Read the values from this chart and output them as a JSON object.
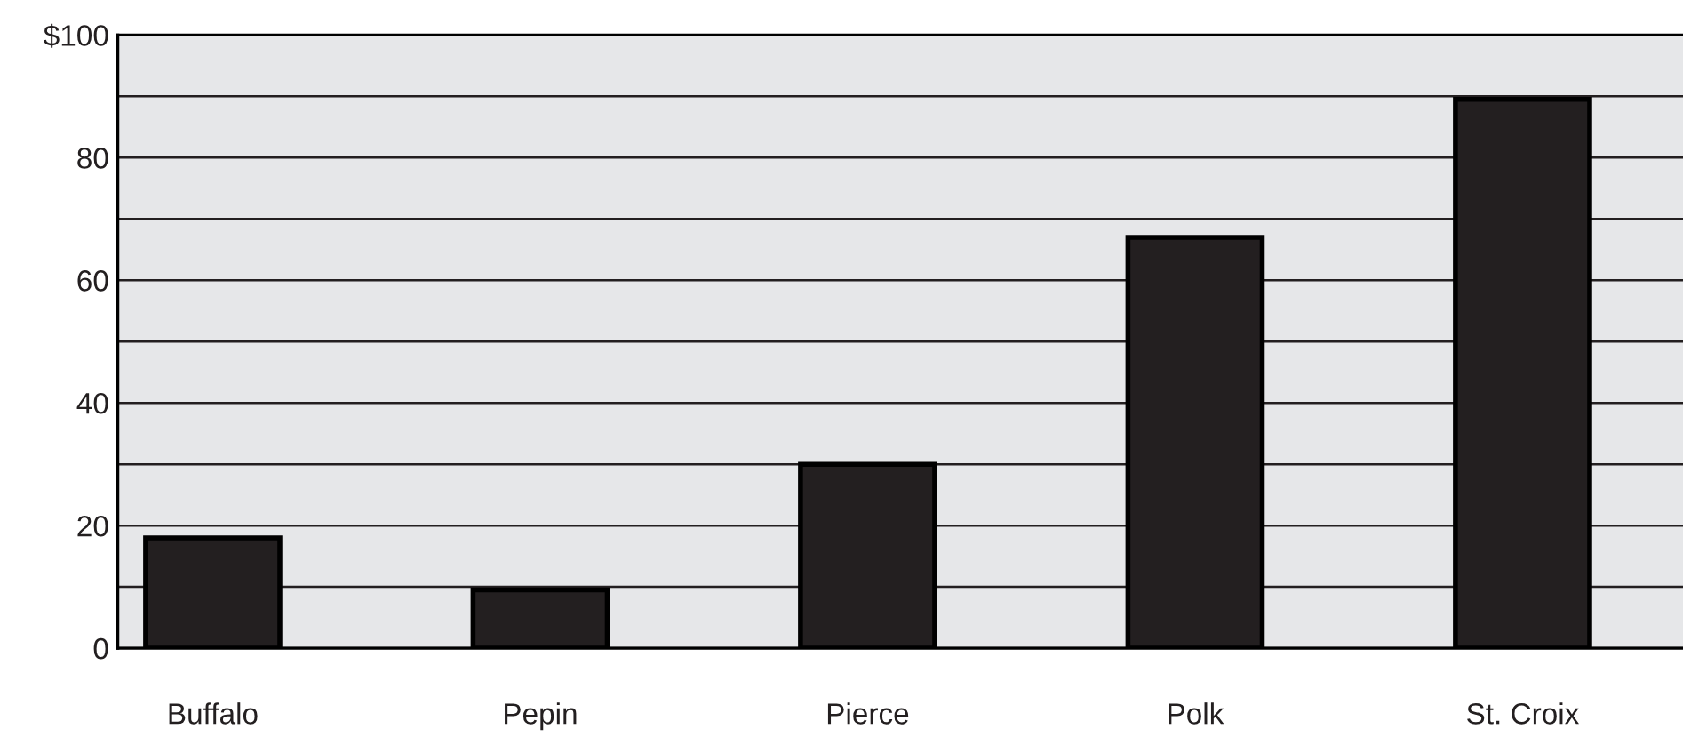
{
  "chart_data": {
    "type": "bar",
    "categories": [
      "Buffalo",
      "Pepin",
      "Pierce",
      "Polk",
      "St. Croix"
    ],
    "values": [
      18,
      9.5,
      30,
      67,
      89.5
    ],
    "color": "#231f20",
    "ylim": [
      0,
      100
    ],
    "yticks": [
      0,
      {
        "value": 10,
        "label": null
      },
      20,
      {
        "value": 30,
        "label": null
      },
      40,
      {
        "value": 50,
        "label": null
      },
      60,
      {
        "value": 70,
        "label": null
      },
      80,
      {
        "value": 90,
        "label": null
      },
      {
        "value": 100,
        "label": "$100"
      }
    ],
    "grid": "y"
  }
}
